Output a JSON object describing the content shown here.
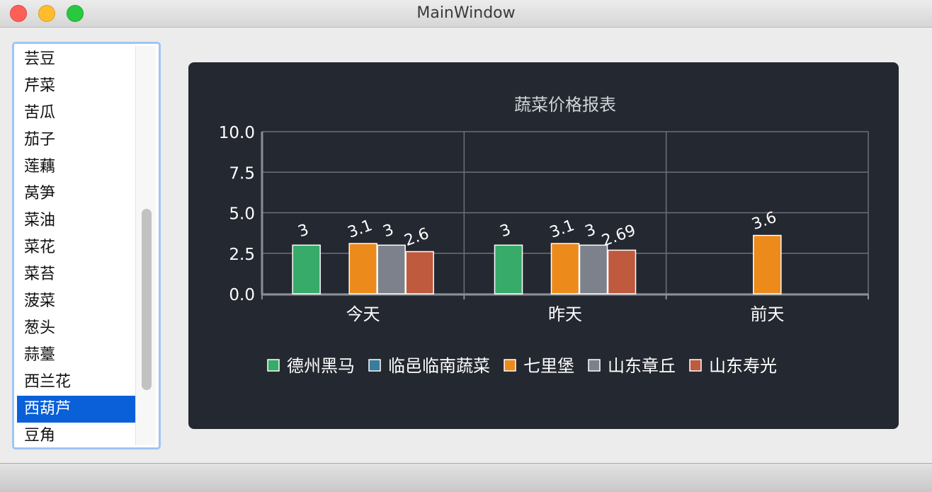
{
  "window": {
    "title": "MainWindow"
  },
  "list": {
    "items": [
      "芸豆",
      "芹菜",
      "苦瓜",
      "茄子",
      "莲藕",
      "莴笋",
      "菜油",
      "菜花",
      "菜苔",
      "菠菜",
      "葱头",
      "蒜薹",
      "西兰花",
      "西葫芦",
      "豆角"
    ],
    "selected_index": 13
  },
  "chart_data": {
    "type": "bar",
    "title": "蔬菜价格报表",
    "categories": [
      "今天",
      "昨天",
      "前天"
    ],
    "ylim": [
      0,
      10
    ],
    "y_ticks": [
      "0.0",
      "2.5",
      "5.0",
      "7.5",
      "10.0"
    ],
    "grid": true,
    "legend_position": "bottom",
    "series": [
      {
        "name": "德州黑马",
        "color": "#36ab6a",
        "values": [
          3,
          3,
          null
        ]
      },
      {
        "name": "临邑临南蔬菜",
        "color": "#3a7c9e",
        "values": [
          null,
          null,
          null
        ]
      },
      {
        "name": "七里堡",
        "color": "#ec8a1c",
        "values": [
          3.1,
          3.1,
          3.6
        ]
      },
      {
        "name": "山东章丘",
        "color": "#7d818b",
        "values": [
          3,
          3,
          null
        ]
      },
      {
        "name": "山东寿光",
        "color": "#bf5a3f",
        "values": [
          2.6,
          2.69,
          null
        ]
      }
    ]
  }
}
